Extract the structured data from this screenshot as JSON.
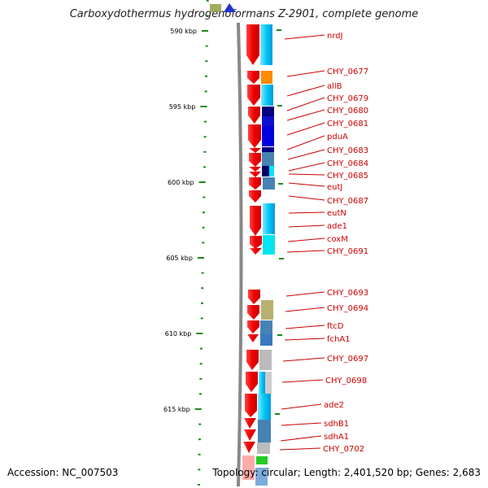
{
  "title": "Carboxydothermus hydrogenoformans Z-2901, complete genome",
  "footer": {
    "accession": "Accession: NC_007503",
    "summary": "Topology: circular; Length: 2,401,520 bp; Genes: 2,683"
  },
  "scale": {
    "unit": "kbp",
    "ticks": [
      {
        "position_kbp": 590,
        "label": "590 kbp"
      },
      {
        "position_kbp": 595,
        "label": "595 kbp"
      },
      {
        "position_kbp": 600,
        "label": "600 kbp"
      },
      {
        "position_kbp": 605,
        "label": "605 kbp"
      },
      {
        "position_kbp": 610,
        "label": "610 kbp"
      },
      {
        "position_kbp": 615,
        "label": "615 kbp"
      }
    ]
  },
  "genes": [
    {
      "name": "nrdJ"
    },
    {
      "name": "CHY_0677"
    },
    {
      "name": "allB"
    },
    {
      "name": "CHY_0679"
    },
    {
      "name": "CHY_0680"
    },
    {
      "name": "CHY_0681"
    },
    {
      "name": "pduA"
    },
    {
      "name": "CHY_0683"
    },
    {
      "name": "CHY_0684"
    },
    {
      "name": "CHY_0685"
    },
    {
      "name": "eutJ"
    },
    {
      "name": "CHY_0687"
    },
    {
      "name": "eutN"
    },
    {
      "name": "ade1"
    },
    {
      "name": "coxM"
    },
    {
      "name": "CHY_0691"
    },
    {
      "name": "CHY_0693"
    },
    {
      "name": "CHY_0694"
    },
    {
      "name": "ftcD"
    },
    {
      "name": "fchA1"
    },
    {
      "name": "CHY_0697"
    },
    {
      "name": "CHY_0698"
    },
    {
      "name": "ade2"
    },
    {
      "name": "sdhB1"
    },
    {
      "name": "sdhA1"
    },
    {
      "name": "CHY_0702"
    }
  ],
  "colors": {
    "label": "#cc0000",
    "strand_arrow": "#ee1111",
    "tick": "#1a8a1a",
    "backbone": "#888888"
  }
}
